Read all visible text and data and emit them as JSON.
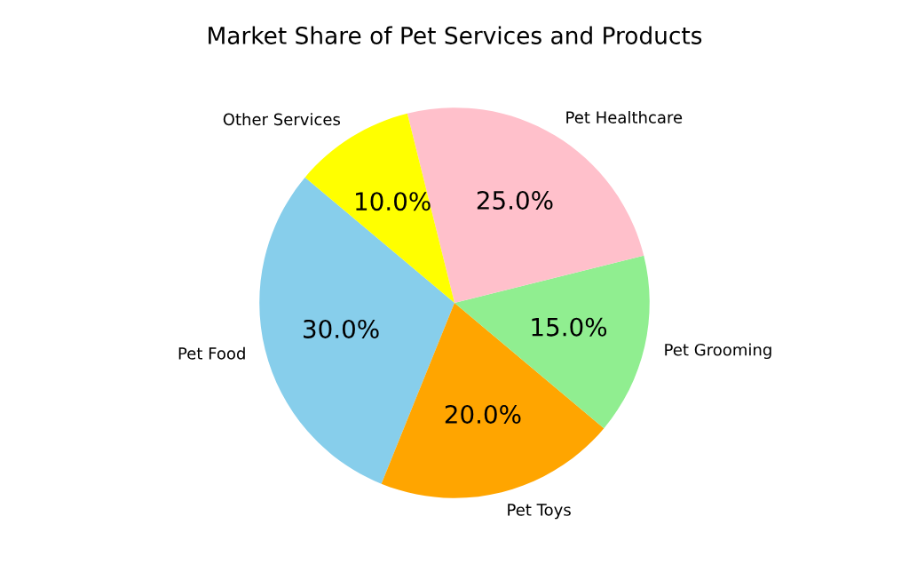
{
  "chart_data": {
    "type": "pie",
    "title": "Market Share of Pet Services and Products",
    "categories": [
      "Pet Food",
      "Pet Toys",
      "Pet Grooming",
      "Pet Healthcare",
      "Other Services"
    ],
    "values": [
      30,
      20,
      15,
      25,
      10
    ],
    "colors": [
      "#87ceeb",
      "#ffa500",
      "#90ee90",
      "#ffc0cb",
      "#ffff00"
    ],
    "value_labels": [
      "30.0%",
      "20.0%",
      "15.0%",
      "25.0%",
      "10.0%"
    ]
  }
}
